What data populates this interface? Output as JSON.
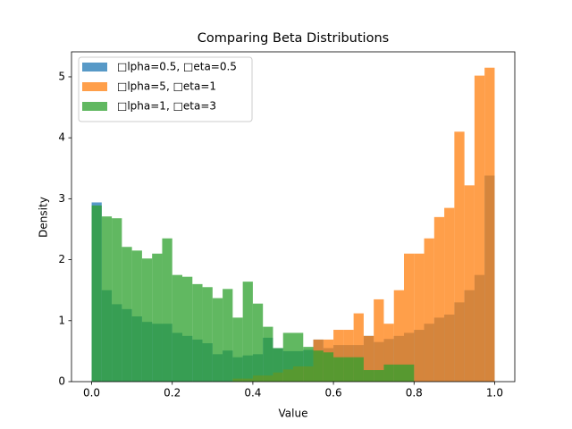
{
  "chart_data": {
    "type": "histogram",
    "title": "Comparing Beta Distributions",
    "xlabel": "Value",
    "ylabel": "Density",
    "bins": [
      0.0,
      0.025,
      0.05,
      0.075,
      0.1,
      0.125,
      0.15,
      0.175,
      0.2,
      0.225,
      0.25,
      0.275,
      0.3,
      0.325,
      0.35,
      0.375,
      0.4,
      0.425,
      0.45,
      0.475,
      0.5,
      0.525,
      0.55,
      0.575,
      0.6,
      0.625,
      0.65,
      0.675,
      0.7,
      0.725,
      0.75,
      0.775,
      0.8,
      0.825,
      0.85,
      0.875,
      0.9,
      0.925,
      0.95,
      0.975,
      1.0
    ],
    "series": [
      {
        "name": "□lpha=0.5, □eta=0.5",
        "color": "#1f77b4",
        "alpha": 0.75,
        "values": [
          2.94,
          1.5,
          1.27,
          1.19,
          1.07,
          0.98,
          0.95,
          0.95,
          0.8,
          0.75,
          0.69,
          0.63,
          0.45,
          0.51,
          0.4,
          0.43,
          0.45,
          0.72,
          0.55,
          0.5,
          0.5,
          0.52,
          0.69,
          0.55,
          0.6,
          0.6,
          0.6,
          0.75,
          0.65,
          0.7,
          0.75,
          0.8,
          0.85,
          0.95,
          1.05,
          1.1,
          1.3,
          1.5,
          1.75,
          3.38
        ]
      },
      {
        "name": "□lpha=5, □eta=1",
        "color": "#ff7f0e",
        "alpha": 0.75,
        "values": [
          0,
          0,
          0,
          0,
          0,
          0,
          0,
          0,
          0,
          0,
          0,
          0,
          0,
          0,
          0.05,
          0.05,
          0.1,
          0.1,
          0.15,
          0.2,
          0.25,
          0.25,
          0.69,
          0.69,
          0.85,
          0.85,
          1.12,
          0.75,
          1.35,
          0.95,
          1.5,
          2.1,
          2.1,
          2.35,
          2.7,
          2.85,
          4.1,
          3.22,
          5.02,
          5.15
        ]
      },
      {
        "name": "□lpha=1, □eta=3",
        "color": "#2ca02c",
        "alpha": 0.75,
        "values": [
          2.89,
          2.71,
          2.68,
          2.21,
          2.15,
          2.02,
          2.1,
          2.35,
          1.75,
          1.72,
          1.6,
          1.55,
          1.37,
          1.52,
          1.05,
          1.64,
          1.28,
          0.9,
          0.55,
          0.8,
          0.8,
          0.57,
          0.51,
          0.48,
          0.4,
          0.4,
          0.4,
          0.19,
          0.19,
          0.28,
          0.28,
          0.28,
          0,
          0,
          0,
          0,
          0,
          0,
          0,
          0
        ]
      }
    ],
    "xlim": [
      -0.05,
      1.05
    ],
    "ylim": [
      0,
      5.41
    ],
    "xticks": [
      {
        "value": 0.0,
        "label": "0.0"
      },
      {
        "value": 0.2,
        "label": "0.2"
      },
      {
        "value": 0.4,
        "label": "0.4"
      },
      {
        "value": 0.6,
        "label": "0.6"
      },
      {
        "value": 0.8,
        "label": "0.8"
      },
      {
        "value": 1.0,
        "label": "1.0"
      }
    ],
    "yticks": [
      0,
      1,
      2,
      3,
      4,
      5
    ],
    "legend": "upper left",
    "grid": false
  }
}
